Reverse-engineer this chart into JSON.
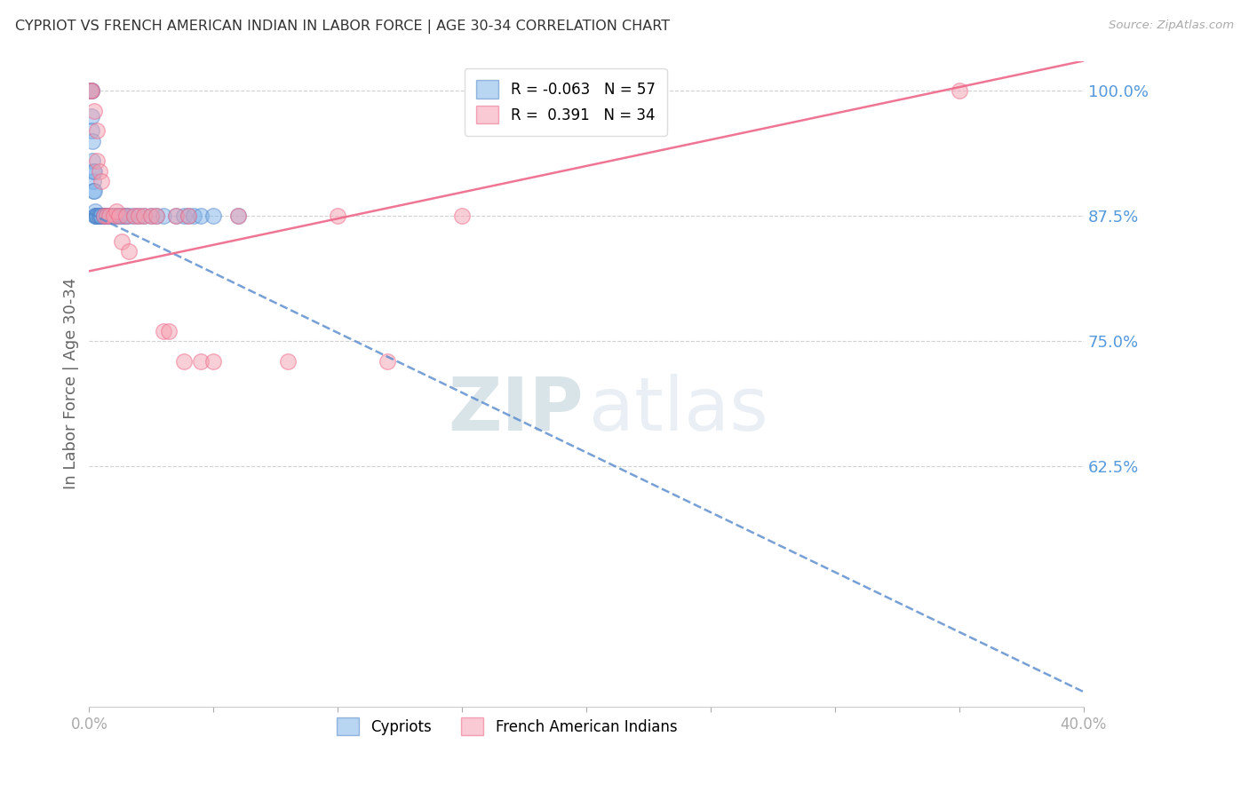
{
  "title": "CYPRIOT VS FRENCH AMERICAN INDIAN IN LABOR FORCE | AGE 30-34 CORRELATION CHART",
  "source": "Source: ZipAtlas.com",
  "ylabel": "In Labor Force | Age 30-34",
  "R_blue": -0.063,
  "N_blue": 57,
  "R_pink": 0.391,
  "N_pink": 34,
  "blue_color": "#7EB3E8",
  "pink_color": "#F5A0B0",
  "blue_line_color": "#5588CC",
  "pink_line_color": "#EE6688",
  "axis_label_color": "#5599DD",
  "xmin": 0.0,
  "xmax": 0.4,
  "ymin": 0.385,
  "ymax": 1.03,
  "yticks": [
    1.0,
    0.875,
    0.75,
    0.625
  ],
  "ytick_labels": [
    "100.0%",
    "87.5%",
    "75.0%",
    "62.5%"
  ],
  "xticks": [
    0.0,
    0.05,
    0.1,
    0.15,
    0.2,
    0.25,
    0.3,
    0.35,
    0.4
  ],
  "xtick_labels": [
    "0.0%",
    "",
    "",
    "",
    "",
    "",
    "",
    "",
    "40.0%"
  ],
  "blue_scatter_x": [
    0.0005,
    0.0005,
    0.0008,
    0.001,
    0.001,
    0.001,
    0.0012,
    0.0012,
    0.0015,
    0.0015,
    0.0015,
    0.002,
    0.002,
    0.0022,
    0.0022,
    0.0025,
    0.003,
    0.003,
    0.003,
    0.003,
    0.003,
    0.0035,
    0.004,
    0.004,
    0.004,
    0.0045,
    0.005,
    0.005,
    0.005,
    0.006,
    0.006,
    0.006,
    0.007,
    0.007,
    0.008,
    0.008,
    0.009,
    0.01,
    0.011,
    0.012,
    0.013,
    0.014,
    0.015,
    0.016,
    0.018,
    0.02,
    0.022,
    0.025,
    0.027,
    0.03,
    0.035,
    0.038,
    0.04,
    0.042,
    0.045,
    0.05,
    0.06
  ],
  "blue_scatter_y": [
    1.0,
    1.0,
    1.0,
    1.0,
    0.975,
    0.96,
    0.95,
    0.93,
    0.92,
    0.91,
    0.9,
    0.92,
    0.9,
    0.88,
    0.875,
    0.875,
    0.875,
    0.875,
    0.875,
    0.875,
    0.875,
    0.875,
    0.875,
    0.875,
    0.875,
    0.875,
    0.875,
    0.875,
    0.875,
    0.875,
    0.875,
    0.875,
    0.875,
    0.875,
    0.875,
    0.875,
    0.875,
    0.875,
    0.875,
    0.875,
    0.875,
    0.875,
    0.875,
    0.875,
    0.875,
    0.875,
    0.875,
    0.875,
    0.875,
    0.875,
    0.875,
    0.875,
    0.875,
    0.875,
    0.875,
    0.875,
    0.875
  ],
  "pink_scatter_x": [
    0.0005,
    0.001,
    0.002,
    0.003,
    0.003,
    0.004,
    0.005,
    0.006,
    0.007,
    0.008,
    0.01,
    0.011,
    0.012,
    0.013,
    0.015,
    0.016,
    0.018,
    0.02,
    0.022,
    0.025,
    0.027,
    0.03,
    0.032,
    0.035,
    0.038,
    0.04,
    0.045,
    0.05,
    0.06,
    0.08,
    0.1,
    0.12,
    0.15,
    0.35
  ],
  "pink_scatter_y": [
    1.0,
    1.0,
    0.98,
    0.96,
    0.93,
    0.92,
    0.91,
    0.875,
    0.875,
    0.875,
    0.875,
    0.88,
    0.875,
    0.85,
    0.875,
    0.84,
    0.875,
    0.875,
    0.875,
    0.875,
    0.875,
    0.76,
    0.76,
    0.875,
    0.73,
    0.875,
    0.73,
    0.73,
    0.875,
    0.73,
    0.875,
    0.73,
    0.875,
    1.0
  ],
  "blue_regline_x0": 0.0,
  "blue_regline_x1": 0.4,
  "blue_regline_y0": 0.878,
  "blue_regline_y1": 0.4,
  "pink_regline_x0": 0.0,
  "pink_regline_x1": 0.4,
  "pink_regline_y0": 0.82,
  "pink_regline_y1": 1.03
}
